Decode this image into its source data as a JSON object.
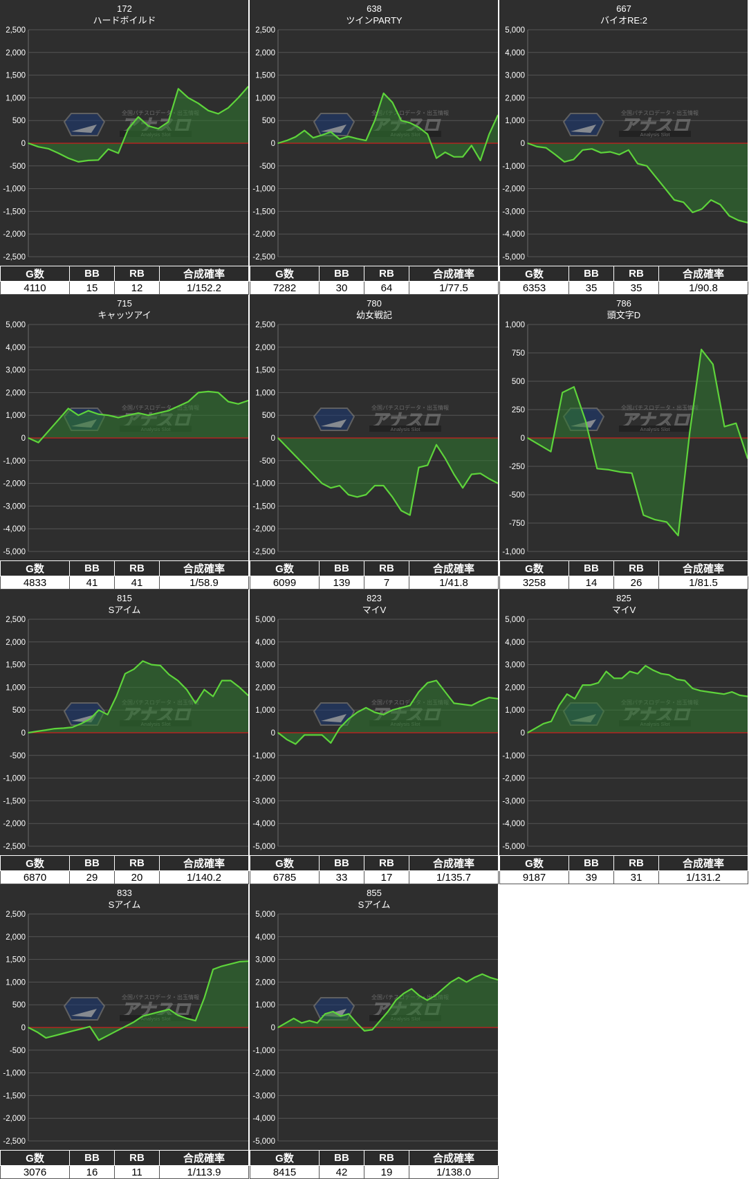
{
  "colors": {
    "panel_bg": "#2e2e2e",
    "grid": "#555555",
    "axis": "#6c6c6c",
    "zero_line": "#cc1f1f",
    "series_line": "#5ed43b",
    "series_fill": "#2f7a2f",
    "text": "#ffffff",
    "header_bg": "#2b2b2b"
  },
  "watermark": {
    "main": "アナスロ",
    "sub": "Analysis Slot",
    "top": "全国パチスロデータ・出玉情報"
  },
  "stat_headers": [
    "G数",
    "BB",
    "RB",
    "合成確率"
  ],
  "chart_data": [
    {
      "type": "line",
      "title": "172",
      "subtitle": "ハードボイルド",
      "ylim": [
        -2500,
        2500
      ],
      "ytick_step": 500,
      "grid": true,
      "x": [
        0,
        1,
        2,
        3,
        4,
        5,
        6,
        7,
        8,
        9,
        10,
        11,
        12,
        13,
        14,
        15,
        16,
        17,
        18,
        19,
        20,
        21,
        22
      ],
      "values": [
        0,
        -80,
        -120,
        -220,
        -330,
        -410,
        -380,
        -370,
        -130,
        -220,
        320,
        580,
        380,
        320,
        470,
        1200,
        1000,
        880,
        720,
        650,
        780,
        1000,
        1250
      ],
      "stats": {
        "g": "4110",
        "bb": "15",
        "rb": "12",
        "rate": "1/152.2"
      }
    },
    {
      "type": "line",
      "title": "638",
      "subtitle": "ツインPARTY",
      "ylim": [
        -2500,
        2500
      ],
      "ytick_step": 500,
      "grid": true,
      "x": [
        0,
        1,
        2,
        3,
        4,
        5,
        6,
        7,
        8,
        9,
        10,
        11,
        12,
        13,
        14,
        15,
        16,
        17,
        18,
        19,
        20,
        21,
        22,
        23,
        24,
        25
      ],
      "values": [
        0,
        60,
        140,
        280,
        120,
        180,
        250,
        90,
        150,
        100,
        60,
        500,
        1100,
        900,
        500,
        450,
        350,
        200,
        -330,
        -200,
        -300,
        -300,
        -50,
        -380,
        200,
        620
      ],
      "stats": {
        "g": "7282",
        "bb": "30",
        "rb": "64",
        "rate": "1/77.5"
      }
    },
    {
      "type": "line",
      "title": "667",
      "subtitle": "バイオRE:2",
      "ylim": [
        -5000,
        5000
      ],
      "ytick_step": 1000,
      "grid": true,
      "x": [
        0,
        1,
        2,
        3,
        4,
        5,
        6,
        7,
        8,
        9,
        10,
        11,
        12,
        13,
        14,
        15,
        16,
        17,
        18,
        19,
        20,
        21,
        22,
        23,
        24
      ],
      "values": [
        0,
        -150,
        -200,
        -500,
        -820,
        -720,
        -300,
        -250,
        -420,
        -380,
        -500,
        -300,
        -900,
        -1000,
        -1500,
        -2000,
        -2500,
        -2600,
        -3050,
        -2900,
        -2500,
        -2700,
        -3200,
        -3400,
        -3500
      ],
      "stats": {
        "g": "6353",
        "bb": "35",
        "rb": "35",
        "rate": "1/90.8"
      }
    },
    {
      "type": "line",
      "title": "715",
      "subtitle": "キャッツアイ",
      "ylim": [
        -5000,
        5000
      ],
      "ytick_step": 1000,
      "grid": true,
      "x": [
        0,
        1,
        2,
        3,
        4,
        5,
        6,
        7,
        8,
        9,
        10,
        11,
        12,
        13,
        14,
        15,
        16,
        17,
        18,
        19,
        20,
        21,
        22
      ],
      "values": [
        0,
        -200,
        300,
        800,
        1300,
        1000,
        1200,
        1050,
        1000,
        900,
        1000,
        1100,
        1000,
        1100,
        1200,
        1400,
        1600,
        2000,
        2050,
        2000,
        1600,
        1500,
        1650
      ],
      "stats": {
        "g": "4833",
        "bb": "41",
        "rb": "41",
        "rate": "1/58.9"
      }
    },
    {
      "type": "line",
      "title": "780",
      "subtitle": "幼女戦記",
      "ylim": [
        -2500,
        2500
      ],
      "ytick_step": 500,
      "grid": true,
      "x": [
        0,
        1,
        2,
        3,
        4,
        5,
        6,
        7,
        8,
        9,
        10,
        11,
        12,
        13,
        14,
        15,
        16,
        17,
        18,
        19,
        20,
        21,
        22,
        23,
        24,
        25
      ],
      "values": [
        0,
        -200,
        -400,
        -600,
        -800,
        -1000,
        -1100,
        -1050,
        -1250,
        -1300,
        -1250,
        -1050,
        -1050,
        -1300,
        -1600,
        -1700,
        -650,
        -600,
        -150,
        -450,
        -800,
        -1100,
        -800,
        -780,
        -900,
        -1000
      ],
      "stats": {
        "g": "6099",
        "bb": "139",
        "rb": "7",
        "rate": "1/41.8"
      }
    },
    {
      "type": "line",
      "title": "786",
      "subtitle": "頭文字D",
      "ylim": [
        -1000,
        1000
      ],
      "ytick_step": 250,
      "grid": true,
      "x": [
        0,
        1,
        2,
        3,
        4,
        5,
        6,
        7,
        8,
        9,
        10,
        11,
        12,
        13,
        14,
        15,
        16,
        17,
        18,
        19
      ],
      "values": [
        0,
        -60,
        -120,
        400,
        450,
        150,
        -270,
        -280,
        -300,
        -310,
        -680,
        -720,
        -740,
        -860,
        50,
        780,
        650,
        100,
        130,
        -180
      ],
      "stats": {
        "g": "3258",
        "bb": "14",
        "rb": "26",
        "rate": "1/81.5"
      }
    },
    {
      "type": "line",
      "title": "815",
      "subtitle": "Sアイム",
      "ylim": [
        -2500,
        2500
      ],
      "ytick_step": 500,
      "grid": true,
      "x": [
        0,
        1,
        2,
        3,
        4,
        5,
        6,
        7,
        8,
        9,
        10,
        11,
        12,
        13,
        14,
        15,
        16,
        17,
        18,
        19,
        20,
        21,
        22,
        23,
        24,
        25
      ],
      "values": [
        0,
        30,
        60,
        90,
        100,
        120,
        200,
        300,
        500,
        400,
        800,
        1300,
        1400,
        1580,
        1500,
        1480,
        1280,
        1150,
        950,
        650,
        950,
        800,
        1150,
        1150,
        1000,
        820
      ],
      "stats": {
        "g": "6870",
        "bb": "29",
        "rb": "20",
        "rate": "1/140.2"
      }
    },
    {
      "type": "line",
      "title": "823",
      "subtitle": "マイV",
      "ylim": [
        -5000,
        5000
      ],
      "ytick_step": 1000,
      "grid": true,
      "x": [
        0,
        1,
        2,
        3,
        4,
        5,
        6,
        7,
        8,
        9,
        10,
        11,
        12,
        13,
        14,
        15,
        16,
        17,
        18,
        19,
        20,
        21,
        22,
        23,
        24,
        25
      ],
      "values": [
        0,
        -300,
        -500,
        -100,
        -100,
        -100,
        -450,
        200,
        600,
        900,
        1100,
        900,
        800,
        1000,
        1100,
        1200,
        1800,
        2200,
        2300,
        1800,
        1300,
        1250,
        1200,
        1400,
        1550,
        1500
      ],
      "stats": {
        "g": "6785",
        "bb": "33",
        "rb": "17",
        "rate": "1/135.7"
      }
    },
    {
      "type": "line",
      "title": "825",
      "subtitle": "マイV",
      "ylim": [
        -5000,
        5000
      ],
      "ytick_step": 1000,
      "grid": true,
      "x": [
        0,
        1,
        2,
        3,
        4,
        5,
        6,
        7,
        8,
        9,
        10,
        11,
        12,
        13,
        14,
        15,
        16,
        17,
        18,
        19,
        20,
        21,
        22,
        23,
        24,
        25,
        26,
        27,
        28
      ],
      "values": [
        0,
        200,
        400,
        500,
        1200,
        1700,
        1500,
        2100,
        2100,
        2200,
        2700,
        2400,
        2400,
        2700,
        2600,
        2950,
        2750,
        2600,
        2550,
        2350,
        2300,
        1950,
        1850,
        1800,
        1750,
        1700,
        1800,
        1650,
        1600
      ],
      "stats": {
        "g": "9187",
        "bb": "39",
        "rb": "31",
        "rate": "1/131.2"
      }
    },
    {
      "type": "line",
      "title": "833",
      "subtitle": "Sアイム",
      "ylim": [
        -2500,
        2500
      ],
      "ytick_step": 500,
      "grid": true,
      "x": [
        0,
        1,
        2,
        3,
        4,
        5,
        6,
        7,
        8,
        9,
        10,
        11,
        12,
        13,
        14,
        15,
        16,
        17,
        18,
        19,
        20,
        21,
        22,
        23,
        24,
        25
      ],
      "values": [
        0,
        -100,
        -230,
        -180,
        -130,
        -80,
        -30,
        20,
        -280,
        -180,
        -80,
        20,
        120,
        250,
        300,
        350,
        400,
        270,
        200,
        150,
        650,
        1280,
        1350,
        1400,
        1450,
        1460
      ],
      "stats": {
        "g": "3076",
        "bb": "16",
        "rb": "11",
        "rate": "1/113.9"
      }
    },
    {
      "type": "line",
      "title": "855",
      "subtitle": "Sアイム",
      "ylim": [
        -5000,
        5000
      ],
      "ytick_step": 1000,
      "grid": true,
      "x": [
        0,
        1,
        2,
        3,
        4,
        5,
        6,
        7,
        8,
        9,
        10,
        11,
        12,
        13,
        14,
        15,
        16,
        17,
        18,
        19,
        20,
        21,
        22,
        23,
        24,
        25,
        26,
        27,
        28
      ],
      "values": [
        0,
        200,
        400,
        200,
        300,
        200,
        600,
        700,
        500,
        600,
        200,
        -150,
        -100,
        300,
        700,
        1200,
        1500,
        1700,
        1400,
        1200,
        1400,
        1700,
        2000,
        2200,
        2000,
        2200,
        2350,
        2200,
        2100
      ],
      "stats": {
        "g": "8415",
        "bb": "42",
        "rb": "19",
        "rate": "1/138.0"
      }
    }
  ]
}
